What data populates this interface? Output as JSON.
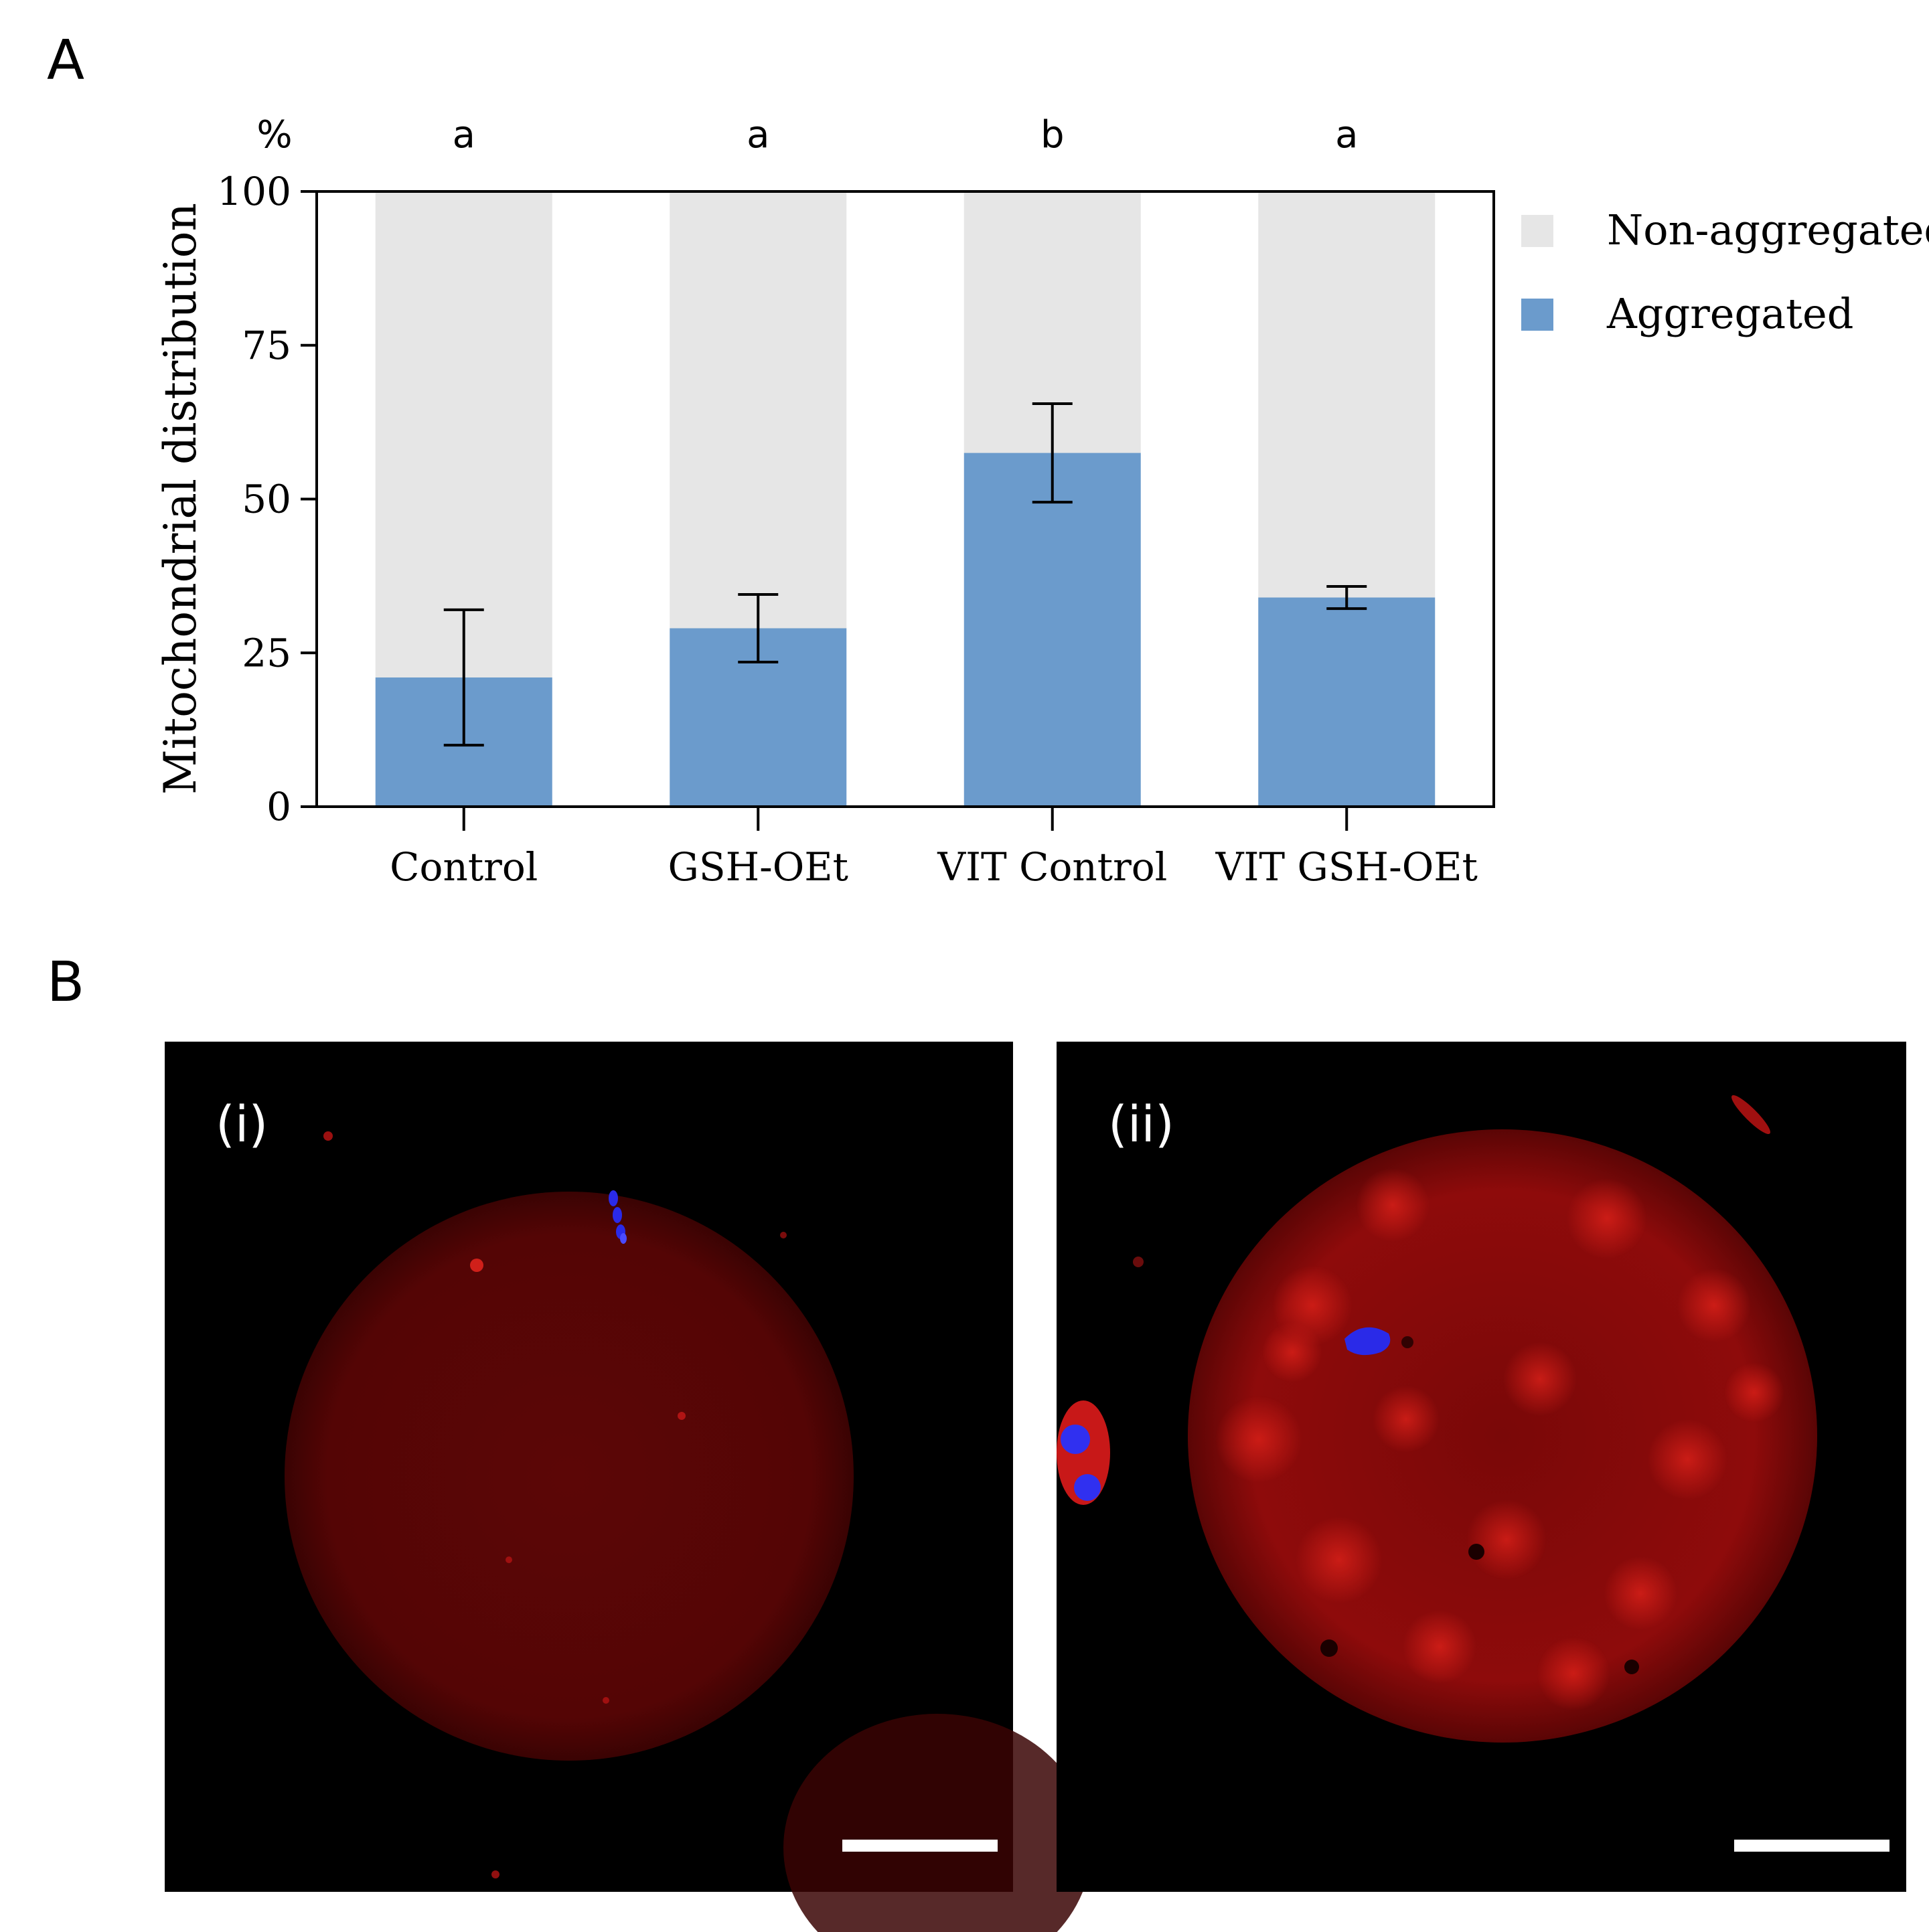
{
  "panels": {
    "a_label": "A",
    "b_label": "B"
  },
  "chart_data": {
    "type": "bar",
    "stacked": true,
    "unit_label": "%",
    "ylabel": "Mitochondrial distribution",
    "xlabel": "",
    "ylim": [
      0,
      100
    ],
    "yticks": [
      "0",
      "25",
      "50",
      "75",
      "100"
    ],
    "categories": [
      "Control",
      "GSH-OEt",
      "VIT Control",
      "VIT GSH-OEt"
    ],
    "significance": [
      "a",
      "a",
      "b",
      "a"
    ],
    "series": [
      {
        "name": "Aggregated",
        "values": [
          21,
          29,
          57.5,
          34
        ],
        "error": [
          11,
          5.5,
          8,
          1.8
        ],
        "color": "#6b9bcc"
      },
      {
        "name": "Non-aggregated",
        "values": [
          79,
          71,
          42.5,
          66
        ],
        "color": "#e6e6e6"
      }
    ],
    "legend_position": "right"
  },
  "micrographs": {
    "i_label": "(i)",
    "ii_label": "(ii)",
    "background": "#000000",
    "stain_colors": {
      "mitochondria": "#b01010",
      "dna": "#2020e0"
    }
  }
}
